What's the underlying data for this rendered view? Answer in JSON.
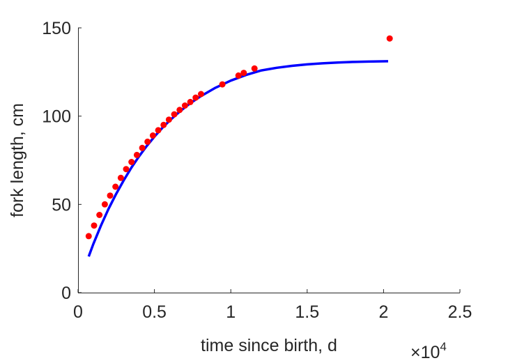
{
  "chart_data": {
    "type": "scatter",
    "xlabel": "time since birth, d",
    "ylabel": "fork length, cm",
    "x_exponent_label": "×10",
    "x_exponent_power": "4",
    "xlim": [
      0,
      25000
    ],
    "ylim": [
      0,
      150
    ],
    "x_ticks": [
      0,
      5000,
      10000,
      15000,
      20000,
      25000
    ],
    "x_tick_labels": [
      "0",
      "0.5",
      "1",
      "1.5",
      "2",
      "2.5"
    ],
    "y_ticks": [
      0,
      50,
      100,
      150
    ],
    "y_tick_labels": [
      "0",
      "50",
      "100",
      "150"
    ],
    "grid": false,
    "box": false,
    "series": [
      {
        "kind": "scatter",
        "color": "#ff0000",
        "points": [
          [
            700,
            32
          ],
          [
            1050,
            38
          ],
          [
            1400,
            44
          ],
          [
            1750,
            50
          ],
          [
            2100,
            55
          ],
          [
            2450,
            60
          ],
          [
            2800,
            65
          ],
          [
            3150,
            70
          ],
          [
            3500,
            74
          ],
          [
            3850,
            78
          ],
          [
            4200,
            82
          ],
          [
            4550,
            85.5
          ],
          [
            4900,
            89
          ],
          [
            5250,
            92
          ],
          [
            5600,
            95
          ],
          [
            5950,
            98
          ],
          [
            6300,
            101
          ],
          [
            6650,
            103.5
          ],
          [
            7000,
            106
          ],
          [
            7350,
            108
          ],
          [
            7700,
            110.5
          ],
          [
            8050,
            112.5
          ],
          [
            9450,
            118
          ],
          [
            10500,
            123
          ],
          [
            10850,
            124.5
          ],
          [
            11550,
            127
          ],
          [
            20400,
            144
          ]
        ]
      },
      {
        "kind": "line",
        "color": "#0000ff",
        "points": [
          [
            700,
            20.5
          ],
          [
            1000,
            27.5
          ],
          [
            1500,
            38
          ],
          [
            2000,
            47.5
          ],
          [
            2500,
            56
          ],
          [
            3000,
            63.8
          ],
          [
            3500,
            70.9
          ],
          [
            4000,
            77.3
          ],
          [
            4500,
            83.1
          ],
          [
            5000,
            88.4
          ],
          [
            5500,
            93.2
          ],
          [
            6000,
            97.5
          ],
          [
            6500,
            101.4
          ],
          [
            7000,
            105
          ],
          [
            7500,
            108.2
          ],
          [
            8000,
            111.1
          ],
          [
            9000,
            116.1
          ],
          [
            10000,
            120.1
          ],
          [
            11000,
            123.3
          ],
          [
            12000,
            125.9
          ],
          [
            13000,
            127.4
          ],
          [
            14000,
            128.5
          ],
          [
            15000,
            129.3
          ],
          [
            16000,
            129.9
          ],
          [
            17000,
            130.4
          ],
          [
            18000,
            130.7
          ],
          [
            19000,
            130.9
          ],
          [
            20300,
            131.1
          ]
        ]
      }
    ]
  }
}
